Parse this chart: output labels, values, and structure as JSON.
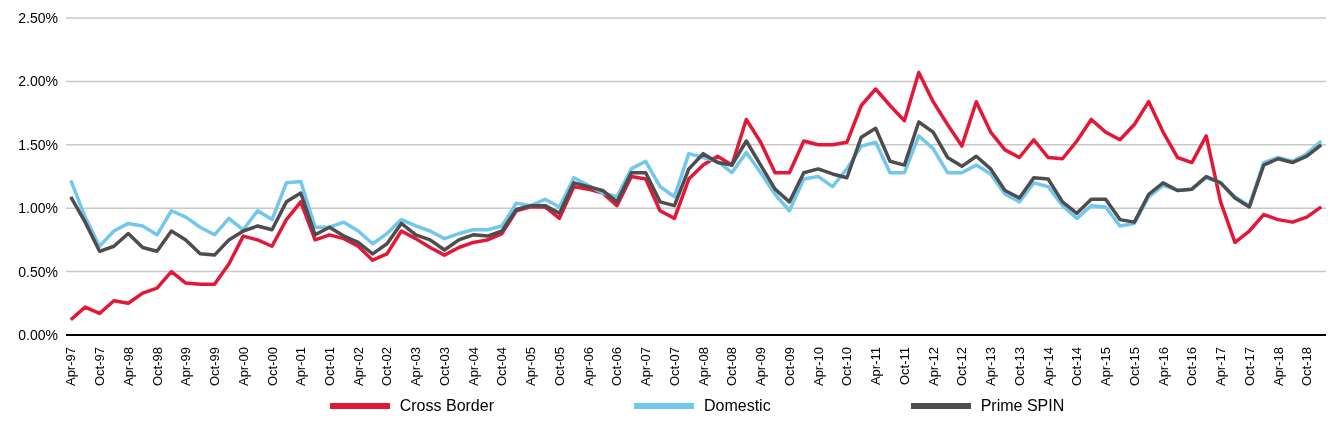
{
  "chart_data": {
    "type": "line",
    "x": [
      "1997-04",
      "1997-07",
      "1997-10",
      "1998-01",
      "1998-04",
      "1998-07",
      "1998-10",
      "1999-01",
      "1999-04",
      "1999-07",
      "1999-10",
      "2000-01",
      "2000-04",
      "2000-07",
      "2000-10",
      "2001-01",
      "2001-04",
      "2001-07",
      "2001-10",
      "2002-01",
      "2002-04",
      "2002-07",
      "2002-10",
      "2003-01",
      "2003-04",
      "2003-07",
      "2003-10",
      "2004-01",
      "2004-04",
      "2004-07",
      "2004-10",
      "2005-01",
      "2005-04",
      "2005-07",
      "2005-10",
      "2006-01",
      "2006-04",
      "2006-07",
      "2006-10",
      "2007-01",
      "2007-04",
      "2007-07",
      "2007-10",
      "2008-01",
      "2008-04",
      "2008-07",
      "2008-10",
      "2009-01",
      "2009-04",
      "2009-07",
      "2009-10",
      "2010-01",
      "2010-04",
      "2010-07",
      "2010-10",
      "2011-01",
      "2011-04",
      "2011-07",
      "2011-10",
      "2012-01",
      "2012-04",
      "2012-07",
      "2012-10",
      "2013-01",
      "2013-04",
      "2013-07",
      "2013-10",
      "2014-01",
      "2014-04",
      "2014-07",
      "2014-10",
      "2015-01",
      "2015-04",
      "2015-07",
      "2015-10",
      "2016-01",
      "2016-04",
      "2016-07",
      "2016-10",
      "2017-01",
      "2017-04",
      "2017-07",
      "2017-10",
      "2018-01",
      "2018-04",
      "2018-07",
      "2018-10",
      "2019-01"
    ],
    "series": [
      {
        "name": "Cross Border",
        "color": "#e31837",
        "values": [
          0.12,
          0.22,
          0.17,
          0.27,
          0.25,
          0.33,
          0.37,
          0.5,
          0.41,
          0.4,
          0.4,
          0.56,
          0.78,
          0.75,
          0.7,
          0.91,
          1.05,
          0.75,
          0.79,
          0.76,
          0.7,
          0.59,
          0.64,
          0.82,
          0.76,
          0.69,
          0.63,
          0.69,
          0.73,
          0.75,
          0.8,
          0.98,
          1.01,
          1.01,
          0.92,
          1.17,
          1.15,
          1.12,
          1.02,
          1.25,
          1.23,
          0.98,
          0.92,
          1.23,
          1.34,
          1.41,
          1.34,
          1.7,
          1.52,
          1.28,
          1.28,
          1.53,
          1.5,
          1.5,
          1.52,
          1.81,
          1.94,
          1.81,
          1.69,
          2.07,
          1.84,
          1.66,
          1.49,
          1.84,
          1.6,
          1.46,
          1.4,
          1.54,
          1.4,
          1.39,
          1.53,
          1.7,
          1.6,
          1.54,
          1.66,
          1.84,
          1.6,
          1.4,
          1.36,
          1.57,
          1.05,
          0.73,
          0.82,
          0.95,
          0.91,
          0.89,
          0.93,
          1.01
        ]
      },
      {
        "name": "Domestic",
        "color": "#72c7ec",
        "values": [
          1.22,
          0.93,
          0.7,
          0.82,
          0.88,
          0.86,
          0.79,
          0.98,
          0.93,
          0.85,
          0.79,
          0.92,
          0.83,
          0.98,
          0.91,
          1.2,
          1.21,
          0.85,
          0.85,
          0.89,
          0.82,
          0.72,
          0.8,
          0.91,
          0.86,
          0.82,
          0.76,
          0.8,
          0.83,
          0.83,
          0.86,
          1.04,
          1.02,
          1.07,
          1.01,
          1.24,
          1.18,
          1.12,
          1.09,
          1.31,
          1.37,
          1.17,
          1.09,
          1.43,
          1.4,
          1.37,
          1.28,
          1.44,
          1.28,
          1.11,
          0.98,
          1.23,
          1.25,
          1.17,
          1.31,
          1.49,
          1.52,
          1.28,
          1.28,
          1.57,
          1.47,
          1.28,
          1.28,
          1.34,
          1.27,
          1.11,
          1.05,
          1.2,
          1.17,
          1.02,
          0.92,
          1.02,
          1.01,
          0.86,
          0.88,
          1.09,
          1.18,
          1.14,
          1.15,
          1.24,
          1.2,
          1.09,
          1.02,
          1.36,
          1.4,
          1.37,
          1.43,
          1.53
        ]
      },
      {
        "name": "Prime SPIN",
        "color": "#4d4d4f",
        "values": [
          1.09,
          0.89,
          0.66,
          0.7,
          0.8,
          0.69,
          0.66,
          0.82,
          0.75,
          0.64,
          0.63,
          0.75,
          0.82,
          0.86,
          0.83,
          1.05,
          1.12,
          0.79,
          0.85,
          0.78,
          0.73,
          0.64,
          0.72,
          0.88,
          0.79,
          0.75,
          0.67,
          0.75,
          0.79,
          0.78,
          0.82,
          0.99,
          1.02,
          1.02,
          0.96,
          1.2,
          1.17,
          1.14,
          1.05,
          1.28,
          1.28,
          1.05,
          1.02,
          1.31,
          1.43,
          1.36,
          1.34,
          1.53,
          1.34,
          1.15,
          1.05,
          1.28,
          1.31,
          1.27,
          1.24,
          1.56,
          1.63,
          1.37,
          1.34,
          1.68,
          1.6,
          1.4,
          1.33,
          1.41,
          1.31,
          1.14,
          1.08,
          1.24,
          1.23,
          1.05,
          0.96,
          1.07,
          1.07,
          0.91,
          0.89,
          1.11,
          1.2,
          1.14,
          1.15,
          1.25,
          1.2,
          1.08,
          1.01,
          1.34,
          1.39,
          1.36,
          1.41,
          1.5
        ]
      }
    ],
    "xlim": [
      "1997-03",
      "2019-02"
    ],
    "xticks": [
      {
        "value": "1997-04",
        "label": "Apr-97"
      },
      {
        "value": "1997-10",
        "label": "Oct-97"
      },
      {
        "value": "1998-04",
        "label": "Apr-98"
      },
      {
        "value": "1998-10",
        "label": "Oct-98"
      },
      {
        "value": "1999-04",
        "label": "Apr-99"
      },
      {
        "value": "1999-10",
        "label": "Oct-99"
      },
      {
        "value": "2000-04",
        "label": "Apr-00"
      },
      {
        "value": "2000-10",
        "label": "Oct-00"
      },
      {
        "value": "2001-04",
        "label": "Apr-01"
      },
      {
        "value": "2001-10",
        "label": "Oct-01"
      },
      {
        "value": "2002-04",
        "label": "Apr-02"
      },
      {
        "value": "2002-10",
        "label": "Oct-02"
      },
      {
        "value": "2003-04",
        "label": "Apr-03"
      },
      {
        "value": "2003-10",
        "label": "Oct-03"
      },
      {
        "value": "2004-04",
        "label": "Apr-04"
      },
      {
        "value": "2004-10",
        "label": "Oct-04"
      },
      {
        "value": "2005-04",
        "label": "Apr-05"
      },
      {
        "value": "2005-10",
        "label": "Oct-05"
      },
      {
        "value": "2006-04",
        "label": "Apr-06"
      },
      {
        "value": "2006-10",
        "label": "Oct-06"
      },
      {
        "value": "2007-04",
        "label": "Apr-07"
      },
      {
        "value": "2007-10",
        "label": "Oct-07"
      },
      {
        "value": "2008-04",
        "label": "Apr-08"
      },
      {
        "value": "2008-10",
        "label": "Oct-08"
      },
      {
        "value": "2009-04",
        "label": "Apr-09"
      },
      {
        "value": "2009-10",
        "label": "Oct-09"
      },
      {
        "value": "2010-04",
        "label": "Apr-10"
      },
      {
        "value": "2010-10",
        "label": "Oct-10"
      },
      {
        "value": "2011-04",
        "label": "Apr-11"
      },
      {
        "value": "2011-10",
        "label": "Oct-11"
      },
      {
        "value": "2012-04",
        "label": "Apr-12"
      },
      {
        "value": "2012-10",
        "label": "Oct-12"
      },
      {
        "value": "2013-04",
        "label": "Apr-13"
      },
      {
        "value": "2013-10",
        "label": "Oct-13"
      },
      {
        "value": "2014-04",
        "label": "Apr-14"
      },
      {
        "value": "2014-10",
        "label": "Oct-14"
      },
      {
        "value": "2015-04",
        "label": "Apr-15"
      },
      {
        "value": "2015-10",
        "label": "Oct-15"
      },
      {
        "value": "2016-04",
        "label": "Apr-16"
      },
      {
        "value": "2016-10",
        "label": "Oct-16"
      },
      {
        "value": "2017-04",
        "label": "Apr-17"
      },
      {
        "value": "2017-10",
        "label": "Oct-17"
      },
      {
        "value": "2018-04",
        "label": "Apr-18"
      },
      {
        "value": "2018-10",
        "label": "Oct-18"
      }
    ],
    "ylim": [
      0,
      2.5
    ],
    "yticks": [
      {
        "value": 0,
        "label": "0.00%"
      },
      {
        "value": 0.5,
        "label": "0.50%"
      },
      {
        "value": 1,
        "label": "1.00%"
      },
      {
        "value": 1.5,
        "label": "1.50%"
      },
      {
        "value": 2,
        "label": "2.00%"
      },
      {
        "value": 2.5,
        "label": "2.50%"
      }
    ],
    "grid": "y",
    "legend": "bottom",
    "marker": "none",
    "line_style": "solid"
  }
}
